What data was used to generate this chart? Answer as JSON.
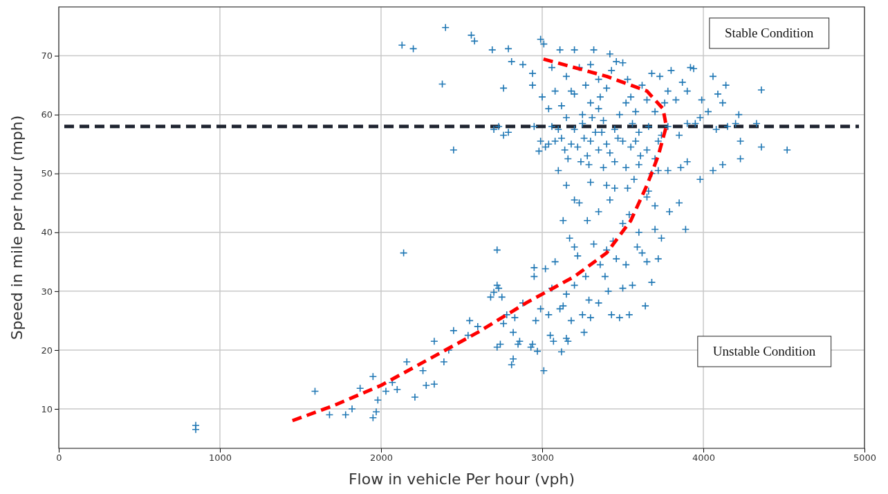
{
  "chart_data": {
    "type": "scatter",
    "xlabel": "Flow in vehicle Per hour (vph)",
    "ylabel": "Speed in mile per hour (mph)",
    "xlim": [
      0,
      5000
    ],
    "ylim": [
      3.3,
      78.3
    ],
    "xticks": [
      0,
      1000,
      2000,
      3000,
      4000,
      5000
    ],
    "yticks": [
      10,
      20,
      30,
      40,
      50,
      60,
      70
    ],
    "grid": true,
    "annotations": [
      "Stable Condition",
      "Unstable Condition"
    ],
    "ref_lines": [
      {
        "axis": "y",
        "value": 58,
        "color": "#1f2430",
        "line_style": "dashed"
      }
    ],
    "series": [
      {
        "color": "#1f77b4",
        "marker": "cross",
        "x": [
          850,
          850,
          1590,
          1680,
          1780,
          1820,
          1870,
          1950,
          1950,
          1970,
          1980,
          2030,
          2070,
          2100,
          2160,
          2210,
          2260,
          2280,
          2330,
          2330,
          2390,
          2420,
          2450,
          2540,
          2550,
          2600,
          2680,
          2700,
          2720,
          2730,
          2750,
          2720,
          2720,
          2740,
          2760,
          2780,
          2810,
          2820,
          2820,
          2830,
          2850,
          2860,
          2880,
          2930,
          2940,
          2950,
          2950,
          2960,
          2970,
          2990,
          3010,
          3020,
          3040,
          3050,
          3060,
          3070,
          3080,
          3110,
          3120,
          3130,
          3150,
          3150,
          3160,
          3180,
          3200,
          3220,
          3250,
          3260,
          3270,
          3290,
          3300,
          3320,
          3350,
          3360,
          3390,
          3400,
          3410,
          3430,
          3440,
          3460,
          3480,
          3500,
          3520,
          3540,
          3560,
          3590,
          3620,
          3640,
          3650,
          3680,
          3700,
          3720,
          2140,
          3130,
          3170,
          3200,
          3230,
          3280,
          3350,
          3420,
          3500,
          3540,
          3600,
          3650,
          3700,
          3740,
          3790,
          3850,
          3890,
          3150,
          3200,
          3300,
          3400,
          3450,
          3530,
          3570,
          3660,
          3720,
          3780,
          3860,
          3900,
          3980,
          4060,
          4120,
          4230,
          4360,
          4520,
          4230,
          4080,
          3950,
          3850,
          3780,
          3720,
          3650,
          3600,
          3550,
          3500,
          3450,
          3420,
          3400,
          3380,
          3350,
          3330,
          3300,
          3280,
          3260,
          3240,
          3220,
          3200,
          3180,
          3160,
          3140,
          3120,
          3100,
          3080,
          3060,
          3040,
          3020,
          2980,
          2990,
          2950,
          2760,
          2790,
          2730,
          2700,
          2450,
          2130,
          2200,
          2400,
          2380,
          2560,
          2580,
          2690,
          2790,
          2810,
          2880,
          2760,
          2940,
          2940,
          2990,
          3010,
          3060,
          3110,
          3200,
          3320,
          3420,
          3300,
          3350,
          3150,
          3080,
          3040,
          3000,
          3120,
          3200,
          3250,
          3300,
          3350,
          3400,
          3430,
          3460,
          3500,
          3530,
          3550,
          3480,
          3580,
          3620,
          3650,
          3680,
          3700,
          3730,
          3760,
          3780,
          3800,
          3830,
          3870,
          3920,
          3940,
          3900,
          3990,
          4060,
          4090,
          4120,
          4140,
          4150,
          4030,
          4200,
          4220,
          4330,
          4360,
          3980,
          3900,
          3600,
          3560,
          3450,
          3380,
          3250,
          3150,
          3100,
          3270,
          3230,
          3180,
          3360,
          3520,
          3660,
          3610,
          3520,
          3470,
          3370,
          3290,
          3310,
          3580,
          3700,
          3740,
          3680
        ],
        "values": [
          7.2,
          6.5,
          13,
          9,
          9,
          10,
          13.5,
          15.5,
          8.5,
          9.5,
          11.5,
          13,
          14.5,
          13.3,
          18,
          12,
          16.5,
          14,
          14.2,
          21.5,
          18,
          20,
          23.3,
          22.5,
          25,
          24,
          29,
          29.8,
          31,
          30.5,
          29,
          37,
          20.5,
          21,
          24.5,
          26,
          17.5,
          18.5,
          23,
          25.5,
          21,
          21.5,
          28,
          20.5,
          21,
          32.5,
          34,
          25,
          19.8,
          27,
          16.5,
          33.8,
          26,
          22.5,
          30.5,
          21.5,
          35,
          27,
          19.7,
          27.5,
          29.5,
          22,
          21.5,
          25,
          31,
          36,
          26,
          23,
          32.5,
          28.5,
          25.5,
          38,
          28,
          34.5,
          32.5,
          37,
          30,
          26,
          38.5,
          35.5,
          25.5,
          30.5,
          34.5,
          26,
          31,
          37.5,
          36.5,
          27.5,
          35,
          31.5,
          40.5,
          35.5,
          36.5,
          42,
          39,
          37.5,
          45,
          42,
          43.5,
          45.5,
          41.5,
          43,
          40,
          46,
          44.5,
          39,
          43.5,
          45,
          40.5,
          48,
          45.5,
          48.5,
          48,
          47.5,
          47.5,
          49,
          47,
          50.5,
          50.5,
          51,
          52,
          49,
          50.5,
          51.5,
          52.5,
          54.5,
          54,
          55.5,
          57.5,
          58.5,
          56.5,
          58,
          55.5,
          54,
          51.5,
          54.5,
          55.5,
          52,
          53.5,
          55,
          51,
          54,
          57,
          55.5,
          53,
          56,
          52,
          54.5,
          57.5,
          55,
          52.5,
          54,
          56,
          50.5,
          55.5,
          58,
          55,
          54.5,
          53.8,
          55.5,
          58,
          56.5,
          57,
          58,
          57.5,
          54,
          71.8,
          71.2,
          74.8,
          65.2,
          73.5,
          72.5,
          71,
          71.2,
          69,
          68.5,
          64.5,
          67,
          65,
          72.8,
          72,
          68,
          71,
          71,
          71,
          70.3,
          68.5,
          66,
          66.5,
          64,
          61,
          63,
          61.5,
          63.5,
          60,
          62,
          61,
          64.5,
          67.5,
          69,
          68.8,
          66,
          63,
          60,
          60.5,
          65,
          62.5,
          67,
          60.5,
          66.5,
          62,
          64,
          67.5,
          62.5,
          65.5,
          68,
          67.8,
          64,
          62.5,
          66.5,
          63.5,
          62,
          65,
          58,
          60.5,
          58.5,
          60,
          58.5,
          64.2,
          59.5,
          58.5,
          57,
          58.5,
          57.5,
          59,
          58.5,
          59.5,
          57.5,
          65,
          68,
          64,
          63,
          62,
          58,
          53,
          51,
          56,
          57,
          51.5,
          59.5,
          55.5,
          52.5,
          56.5,
          50
        ]
      },
      {
        "type": "line",
        "color": "#ff0000",
        "line_style": "dashed",
        "marker": "none",
        "x": [
          1450,
          1700,
          2000,
          2300,
          2600,
          2900,
          3200,
          3400,
          3550,
          3650,
          3720,
          3770,
          3750,
          3650,
          3400,
          3000
        ],
        "values": [
          8,
          10.5,
          14,
          18.5,
          23,
          28,
          32.5,
          36.5,
          42,
          48,
          53,
          58,
          61,
          64,
          66.5,
          69.5
        ]
      }
    ]
  }
}
